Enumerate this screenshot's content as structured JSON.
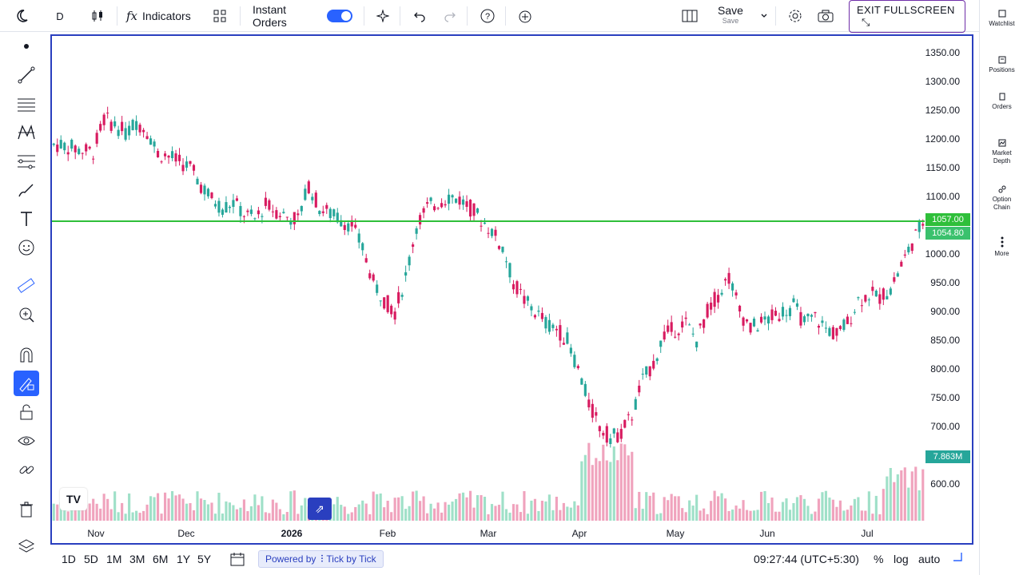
{
  "toolbar": {
    "symbol_interval": "D",
    "indicators_label": "Indicators",
    "instant_orders_label": "Instant Orders",
    "instant_orders_on": true,
    "save_label": "Save",
    "save_sub": "Save",
    "exit_fullscreen_label": "EXIT FULLSCREEN"
  },
  "right_sidebar": {
    "items": [
      {
        "label": "Watchlist",
        "icon": "watchlist-icon"
      },
      {
        "label": "Positions",
        "icon": "positions-icon"
      },
      {
        "label": "Orders",
        "icon": "orders-icon"
      },
      {
        "label": "Market Depth",
        "icon": "market-depth-icon"
      },
      {
        "label": "Option Chain",
        "icon": "option-chain-icon"
      },
      {
        "label": "More",
        "icon": "more-icon"
      }
    ]
  },
  "left_tools": [
    "dot-icon",
    "trend-line-icon",
    "horizontal-lines-icon",
    "pattern-icon",
    "fib-icon",
    "brush-icon",
    "text-icon",
    "emoji-icon",
    "ruler-icon",
    "zoom-in-icon",
    "magnet-icon",
    "lock-drawing-icon",
    "unlock-icon",
    "eye-icon",
    "link-icon",
    "trash-icon",
    "layers-icon"
  ],
  "bottom": {
    "ranges": [
      "1D",
      "5D",
      "1M",
      "3M",
      "6M",
      "1Y",
      "5Y"
    ],
    "powered_by_label": "Powered by",
    "powered_brand": "Tick by Tick",
    "time": "09:27:44 (UTC+5:30)",
    "percent_label": "%",
    "log_label": "log",
    "auto_label": "auto"
  },
  "chart_data": {
    "type": "candlestick",
    "price_axis_labels": [
      "1350.00",
      "1300.00",
      "1250.00",
      "1200.00",
      "1150.00",
      "1100.00",
      "1000.00",
      "950.00",
      "900.00",
      "850.00",
      "800.00",
      "750.00",
      "700.00",
      "600.00"
    ],
    "time_axis_labels": [
      "Nov",
      "Dec",
      "2026",
      "Feb",
      "Mar",
      "Apr",
      "May",
      "Jun",
      "Jul"
    ],
    "horizontal_line_level": 1057.0,
    "horizontal_line_label": "1057.00",
    "last_price_label": "1054.80",
    "volume_label": "7.863M",
    "colors": {
      "up": "#26a69a",
      "down": "#d81b60",
      "line": "#2fbf3a",
      "up_volume": "#9fe0c8",
      "down_volume": "#f0a3bd"
    },
    "close_path": [
      1190,
      1185,
      1180,
      1178,
      1235,
      1225,
      1210,
      1230,
      1215,
      1175,
      1170,
      1160,
      1150,
      1120,
      1095,
      1080,
      1090,
      1070,
      1060,
      1085,
      1075,
      1065,
      1060,
      1120,
      1080,
      1070,
      1060,
      1050,
      1010,
      950,
      920,
      900,
      960,
      1050,
      1080,
      1090,
      1100,
      1095,
      1080,
      1060,
      1040,
      1010,
      950,
      920,
      900,
      880,
      870,
      850,
      800,
      740,
      700,
      680,
      690,
      720,
      780,
      810,
      860,
      870,
      880,
      850,
      900,
      930,
      960,
      900,
      870,
      880,
      890,
      900,
      910,
      880,
      890,
      870,
      860,
      880,
      920,
      930,
      925,
      940,
      980,
      1020,
      1054.8
    ]
  }
}
